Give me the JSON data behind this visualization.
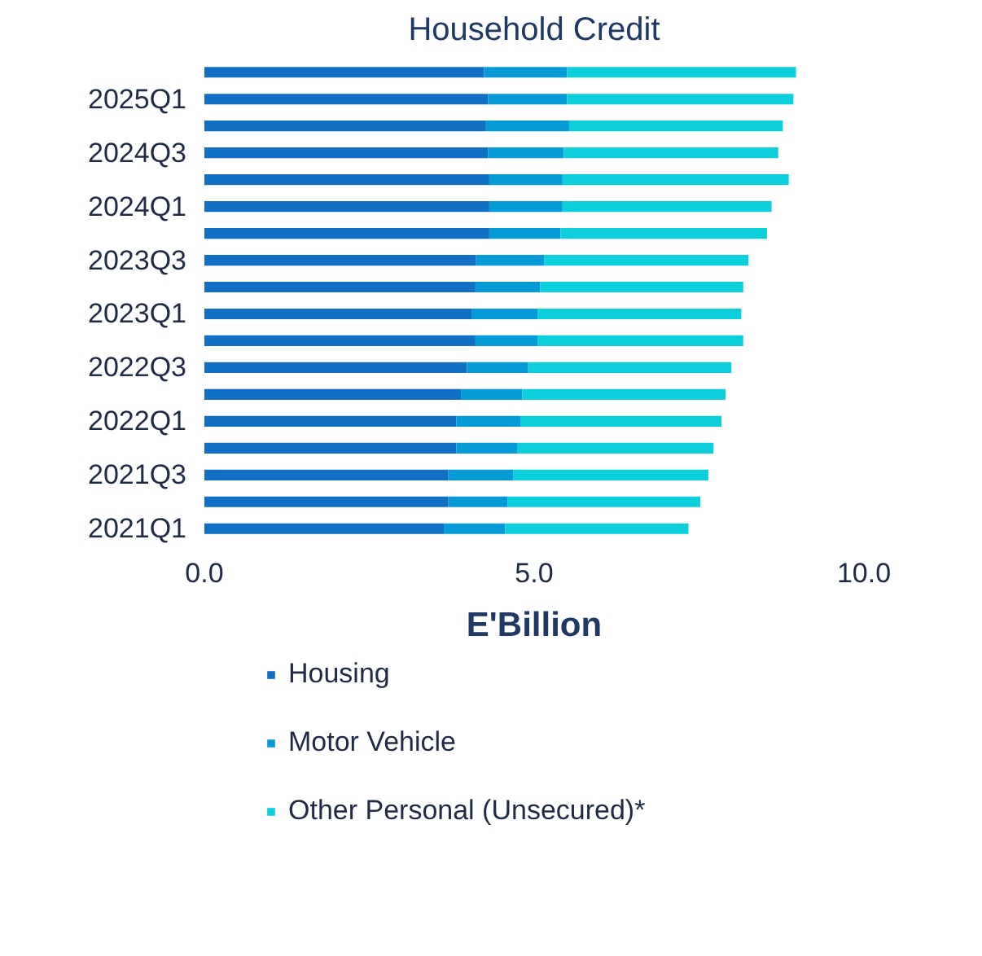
{
  "chart_data": {
    "type": "bar",
    "orientation": "horizontal",
    "stacked": true,
    "title": "Household Credit",
    "xlabel": "E'Billion",
    "categories": [
      null,
      "2025Q1",
      null,
      "2024Q3",
      null,
      "2024Q1",
      null,
      "2023Q3",
      null,
      "2023Q1",
      null,
      "2022Q3",
      null,
      "2022Q1",
      null,
      "2021Q3",
      null,
      "2021Q1"
    ],
    "series": [
      {
        "name": "Housing",
        "color": "#1170c4",
        "values": [
          4.24,
          4.3,
          4.27,
          4.3,
          4.32,
          4.32,
          4.32,
          4.12,
          4.11,
          4.05,
          4.11,
          3.98,
          3.89,
          3.82,
          3.82,
          3.7,
          3.7,
          3.63
        ]
      },
      {
        "name": "Motor Vehicle",
        "color": "#069bd6",
        "values": [
          1.26,
          1.2,
          1.26,
          1.15,
          1.11,
          1.11,
          1.08,
          1.03,
          0.98,
          1.0,
          0.94,
          0.93,
          0.93,
          0.97,
          0.93,
          0.98,
          0.9,
          0.93
        ]
      },
      {
        "name": "Other Personal (Unsecured)*",
        "color": "#0dcfdc",
        "values": [
          3.47,
          3.43,
          3.24,
          3.25,
          3.43,
          3.17,
          3.13,
          3.1,
          3.08,
          3.09,
          3.12,
          3.08,
          3.08,
          3.05,
          2.97,
          2.96,
          2.92,
          2.78
        ]
      }
    ],
    "xlim": [
      0,
      10
    ],
    "xticks": [
      {
        "value": 0,
        "label": "0.0"
      },
      {
        "value": 5,
        "label": "5.0"
      },
      {
        "value": 10,
        "label": "10.0"
      }
    ],
    "grid": false,
    "legend": "bottom"
  }
}
